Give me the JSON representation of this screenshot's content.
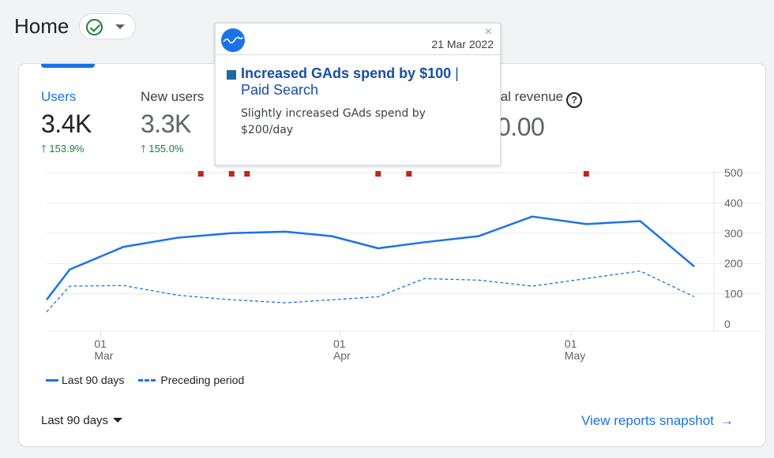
{
  "page": {
    "title": "Home"
  },
  "status": {
    "icon": "check-circle-icon"
  },
  "metrics": [
    {
      "label": "Users",
      "value": "3.4K",
      "change": "153.9%",
      "active": true
    },
    {
      "label": "New users",
      "value": "3.3K",
      "change": "155.0%",
      "active": false
    },
    {
      "label": "tal revenue",
      "value": "0.00",
      "change": "",
      "active": false
    }
  ],
  "tooltip": {
    "date": "21 Mar 2022",
    "close": "×",
    "title": "Increased GAds spend by $100",
    "separator": "|",
    "category": "Paid Search",
    "description": "Slightly increased GAds spend by $200/day"
  },
  "legend": {
    "current": "Last 90 days",
    "previous": "Preceding period"
  },
  "range": {
    "label": "Last 90 days"
  },
  "view_link": {
    "label": "View reports snapshot",
    "arrow": "→"
  },
  "colors": {
    "accent": "#1a73e8",
    "positive": "#188038",
    "annotation": "#c5221f"
  },
  "chart_data": {
    "type": "line",
    "y_ticks": [
      0,
      100,
      200,
      300,
      400,
      500
    ],
    "ylim": [
      0,
      500
    ],
    "x_ticks": [
      {
        "day": "01",
        "month": "Mar"
      },
      {
        "day": "01",
        "month": "Apr"
      },
      {
        "day": "01",
        "month": "May"
      }
    ],
    "series": [
      {
        "name": "Last 90 days",
        "style": "solid",
        "x": [
          0,
          3,
          10,
          17,
          24,
          31,
          37,
          43,
          49,
          56,
          63,
          70,
          77,
          84
        ],
        "values": [
          80,
          180,
          255,
          285,
          300,
          305,
          290,
          250,
          270,
          290,
          355,
          330,
          340,
          190
        ]
      },
      {
        "name": "Preceding period",
        "style": "dashed",
        "x": [
          0,
          3,
          10,
          17,
          24,
          31,
          37,
          43,
          49,
          56,
          63,
          70,
          77,
          84
        ],
        "values": [
          40,
          125,
          127,
          95,
          80,
          70,
          80,
          90,
          150,
          145,
          125,
          150,
          175,
          90
        ]
      }
    ],
    "annotation_days": [
      20,
      24,
      26,
      43,
      47,
      70
    ]
  }
}
